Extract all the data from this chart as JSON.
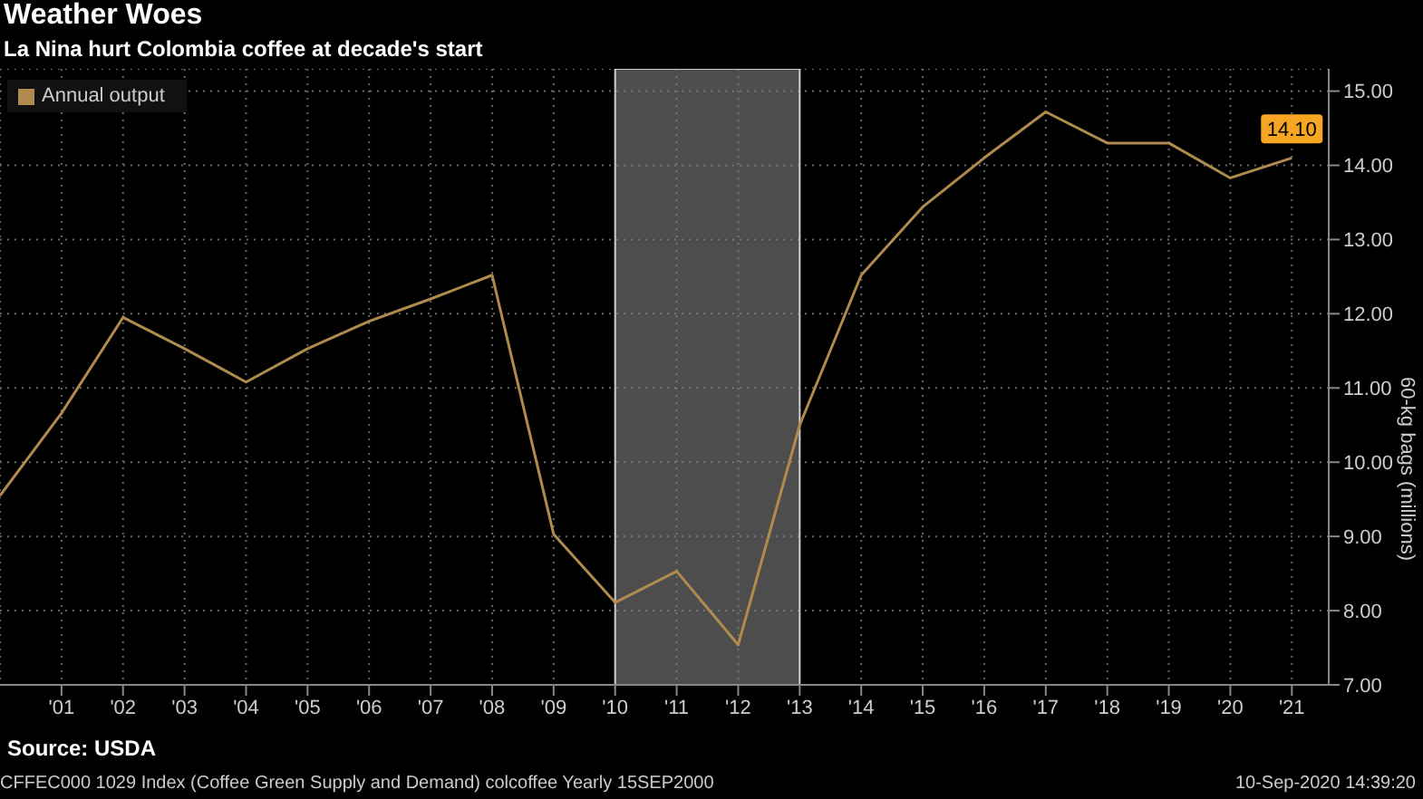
{
  "chart_data": {
    "type": "line",
    "title": "Weather Woes",
    "subtitle": "La Nina hurt Colombia coffee at decade's start",
    "ylabel": "60-kg bags (millions)",
    "x": [
      2000,
      2001,
      2002,
      2003,
      2004,
      2005,
      2006,
      2007,
      2008,
      2009,
      2010,
      2011,
      2012,
      2013,
      2014,
      2015,
      2016,
      2017,
      2018,
      2019,
      2020,
      2021
    ],
    "series": [
      {
        "name": "Annual output",
        "color": "#b08a4e",
        "values": [
          9.55,
          10.66,
          11.95,
          11.53,
          11.08,
          11.53,
          11.9,
          12.2,
          12.52,
          9.03,
          8.11,
          8.53,
          7.54,
          10.5,
          12.52,
          13.44,
          14.1,
          14.72,
          14.3,
          14.3,
          13.83,
          14.1
        ],
        "value_labels": [
          null,
          null,
          null,
          null,
          null,
          null,
          null,
          null,
          null,
          null,
          null,
          null,
          null,
          null,
          null,
          null,
          null,
          null,
          null,
          null,
          null,
          "14.10"
        ]
      }
    ],
    "xlim": [
      2000,
      2021.6
    ],
    "xticks": [
      {
        "value": 2001,
        "label": "'01"
      },
      {
        "value": 2002,
        "label": "'02"
      },
      {
        "value": 2003,
        "label": "'03"
      },
      {
        "value": 2004,
        "label": "'04"
      },
      {
        "value": 2005,
        "label": "'05"
      },
      {
        "value": 2006,
        "label": "'06"
      },
      {
        "value": 2007,
        "label": "'07"
      },
      {
        "value": 2008,
        "label": "'08"
      },
      {
        "value": 2009,
        "label": "'09"
      },
      {
        "value": 2010,
        "label": "'10"
      },
      {
        "value": 2011,
        "label": "'11"
      },
      {
        "value": 2012,
        "label": "'12"
      },
      {
        "value": 2013,
        "label": "'13"
      },
      {
        "value": 2014,
        "label": "'14"
      },
      {
        "value": 2015,
        "label": "'15"
      },
      {
        "value": 2016,
        "label": "'16"
      },
      {
        "value": 2017,
        "label": "'17"
      },
      {
        "value": 2018,
        "label": "'18"
      },
      {
        "value": 2019,
        "label": "'19"
      },
      {
        "value": 2020,
        "label": "'20"
      },
      {
        "value": 2021,
        "label": "'21"
      }
    ],
    "ylim": [
      7,
      15.3
    ],
    "yticks": [
      {
        "value": 7,
        "label": "7.00"
      },
      {
        "value": 8,
        "label": "8.00"
      },
      {
        "value": 9,
        "label": "9.00"
      },
      {
        "value": 10,
        "label": "10.00"
      },
      {
        "value": 11,
        "label": "11.00"
      },
      {
        "value": 12,
        "label": "12.00"
      },
      {
        "value": 13,
        "label": "13.00"
      },
      {
        "value": 14,
        "label": "14.00"
      },
      {
        "value": 15,
        "label": "15.00"
      }
    ],
    "bands": [
      {
        "axis": "x",
        "from": 2010,
        "to": 2013,
        "color": "#808080"
      }
    ],
    "grid": true,
    "legend": "top left",
    "marker": "none",
    "line_style": "solid",
    "annotations": [
      "Source: USDA",
      "CFFEC000 1029 Index (Coffee Green Supply and Demand) colcoffee  Yearly 15SEP2000",
      "10-Sep-2020 14:39:20"
    ]
  }
}
